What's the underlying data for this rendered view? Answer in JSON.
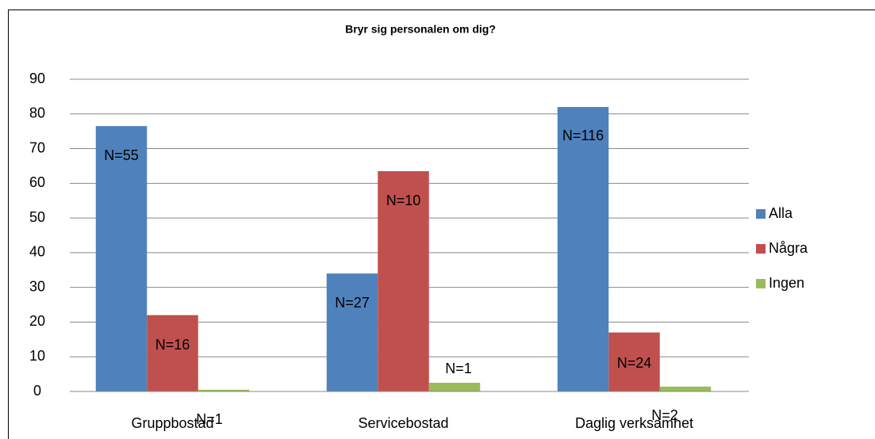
{
  "chart_data": {
    "type": "bar",
    "title": "Bryr sig personalen om dig?",
    "categories": [
      "Gruppbostad",
      "Servicebostad",
      "Daglig verksamhet"
    ],
    "series": [
      {
        "name": "Alla",
        "color": "#4f81bd",
        "values": [
          76.5,
          34,
          82
        ],
        "labels": [
          "N=55",
          "N=27",
          "N=116"
        ]
      },
      {
        "name": "Några",
        "color": "#c0504d",
        "values": [
          22,
          63.5,
          17
        ],
        "labels": [
          "N=16",
          "N=10",
          "N=24"
        ]
      },
      {
        "name": "Ingen",
        "color": "#9bbb59",
        "values": [
          0.5,
          2.5,
          1.4
        ],
        "labels": [
          "N=1",
          "N=1",
          "N=2"
        ]
      }
    ],
    "ylim": [
      0,
      90
    ],
    "yticks": [
      0,
      10,
      20,
      30,
      40,
      50,
      60,
      70,
      80,
      90
    ],
    "grid": true,
    "legend": "right"
  }
}
